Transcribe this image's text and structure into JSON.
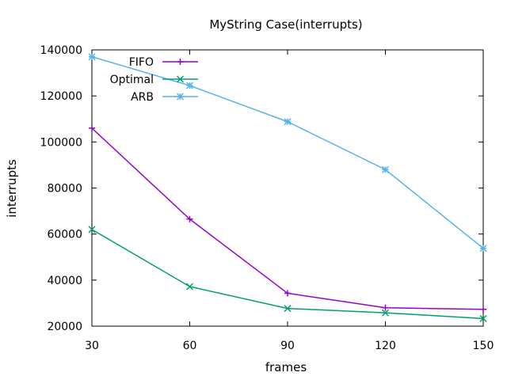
{
  "chart_data": {
    "type": "line",
    "title": "MyString Case(interrupts)",
    "xlabel": "frames",
    "ylabel": "interrupts",
    "x": [
      30,
      60,
      90,
      120,
      150
    ],
    "xlim": [
      30,
      150
    ],
    "ylim": [
      20000,
      140000
    ],
    "xticks": [
      "30",
      "60",
      "90",
      "120",
      "150"
    ],
    "yticks": [
      "20000",
      "40000",
      "60000",
      "80000",
      "100000",
      "120000",
      "140000"
    ],
    "grid": false,
    "legend_position": "top-left",
    "series": [
      {
        "name": "FIFO",
        "color": "#9400d3",
        "marker": "plus",
        "values": [
          106000,
          66500,
          34300,
          28000,
          27300
        ]
      },
      {
        "name": "Optimal",
        "color": "#009e73",
        "marker": "x",
        "values": [
          62000,
          37200,
          27700,
          25800,
          23300
        ]
      },
      {
        "name": "ARB",
        "color": "#56b4e9",
        "marker": "star",
        "values": [
          137000,
          124500,
          108800,
          88000,
          53800
        ]
      }
    ]
  }
}
